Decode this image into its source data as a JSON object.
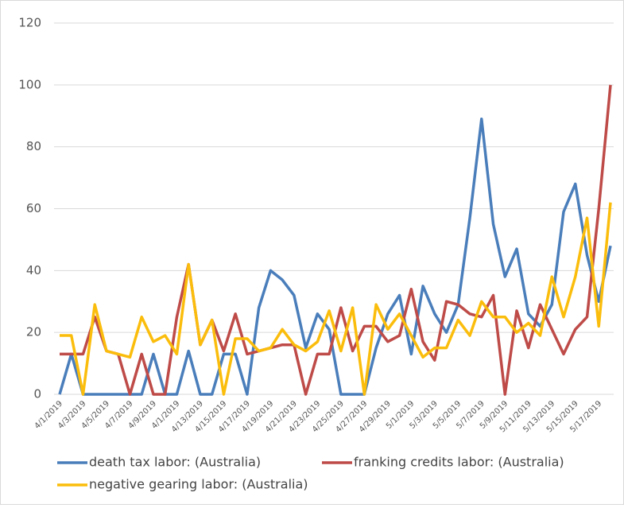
{
  "chart_data": {
    "type": "line",
    "categories": [
      "4/1/2019",
      null,
      "4/3/2019",
      null,
      "4/5/2019",
      null,
      "4/7/2019",
      null,
      "4/9/2019",
      null,
      "4/1/2019",
      null,
      "4/13/2019",
      null,
      "4/15/2019",
      null,
      "4/17/2019",
      null,
      "4/19/2019",
      null,
      "4/21/2019",
      null,
      "4/23/2019",
      null,
      "4/25/2019",
      null,
      "4/27/2019",
      null,
      "4/29/2019",
      null,
      "5/1/2019",
      null,
      "5/3/2019",
      null,
      "5/5/2019",
      null,
      "5/7/2019",
      null,
      "5/9/2019",
      null,
      "5/11/2019",
      null,
      "5/13/2019",
      null,
      "5/15/2019",
      null,
      "5/17/2019",
      null
    ],
    "series": [
      {
        "name": "death tax labor: (Australia)",
        "color": "#4a7ebb",
        "values": [
          0,
          13,
          0,
          0,
          0,
          0,
          0,
          0,
          13,
          0,
          0,
          14,
          0,
          0,
          13,
          13,
          0,
          28,
          40,
          37,
          32,
          15,
          26,
          21,
          0,
          0,
          0,
          15,
          26,
          32,
          13,
          35,
          26,
          20,
          29,
          57,
          89,
          55,
          38,
          47,
          26,
          22,
          29,
          59,
          68,
          45,
          30,
          48
        ]
      },
      {
        "name": "franking credits labor: (Australia)",
        "color": "#be4b48",
        "values": [
          13,
          13,
          13,
          25,
          14,
          13,
          0,
          13,
          0,
          0,
          25,
          42,
          16,
          24,
          14,
          26,
          13,
          14,
          15,
          16,
          16,
          0,
          13,
          13,
          28,
          14,
          22,
          22,
          17,
          19,
          34,
          17,
          11,
          30,
          29,
          26,
          25,
          32,
          0,
          27,
          15,
          29,
          21,
          13,
          21,
          25,
          60,
          100
        ]
      },
      {
        "name": "negative gearing labor: (Australia)",
        "color": "#fbbd0c",
        "values": [
          19,
          19,
          0,
          29,
          14,
          13,
          12,
          25,
          17,
          19,
          13,
          42,
          16,
          24,
          0,
          18,
          18,
          14,
          15,
          21,
          16,
          14,
          17,
          27,
          14,
          28,
          0,
          29,
          21,
          26,
          19,
          12,
          15,
          15,
          24,
          19,
          30,
          25,
          25,
          20,
          23,
          19,
          38,
          25,
          38,
          57,
          22,
          62
        ]
      }
    ],
    "ylim": [
      0,
      120
    ],
    "yticks": [
      0,
      20,
      40,
      60,
      80,
      100,
      120
    ],
    "grid": true,
    "legend": "bottom"
  }
}
